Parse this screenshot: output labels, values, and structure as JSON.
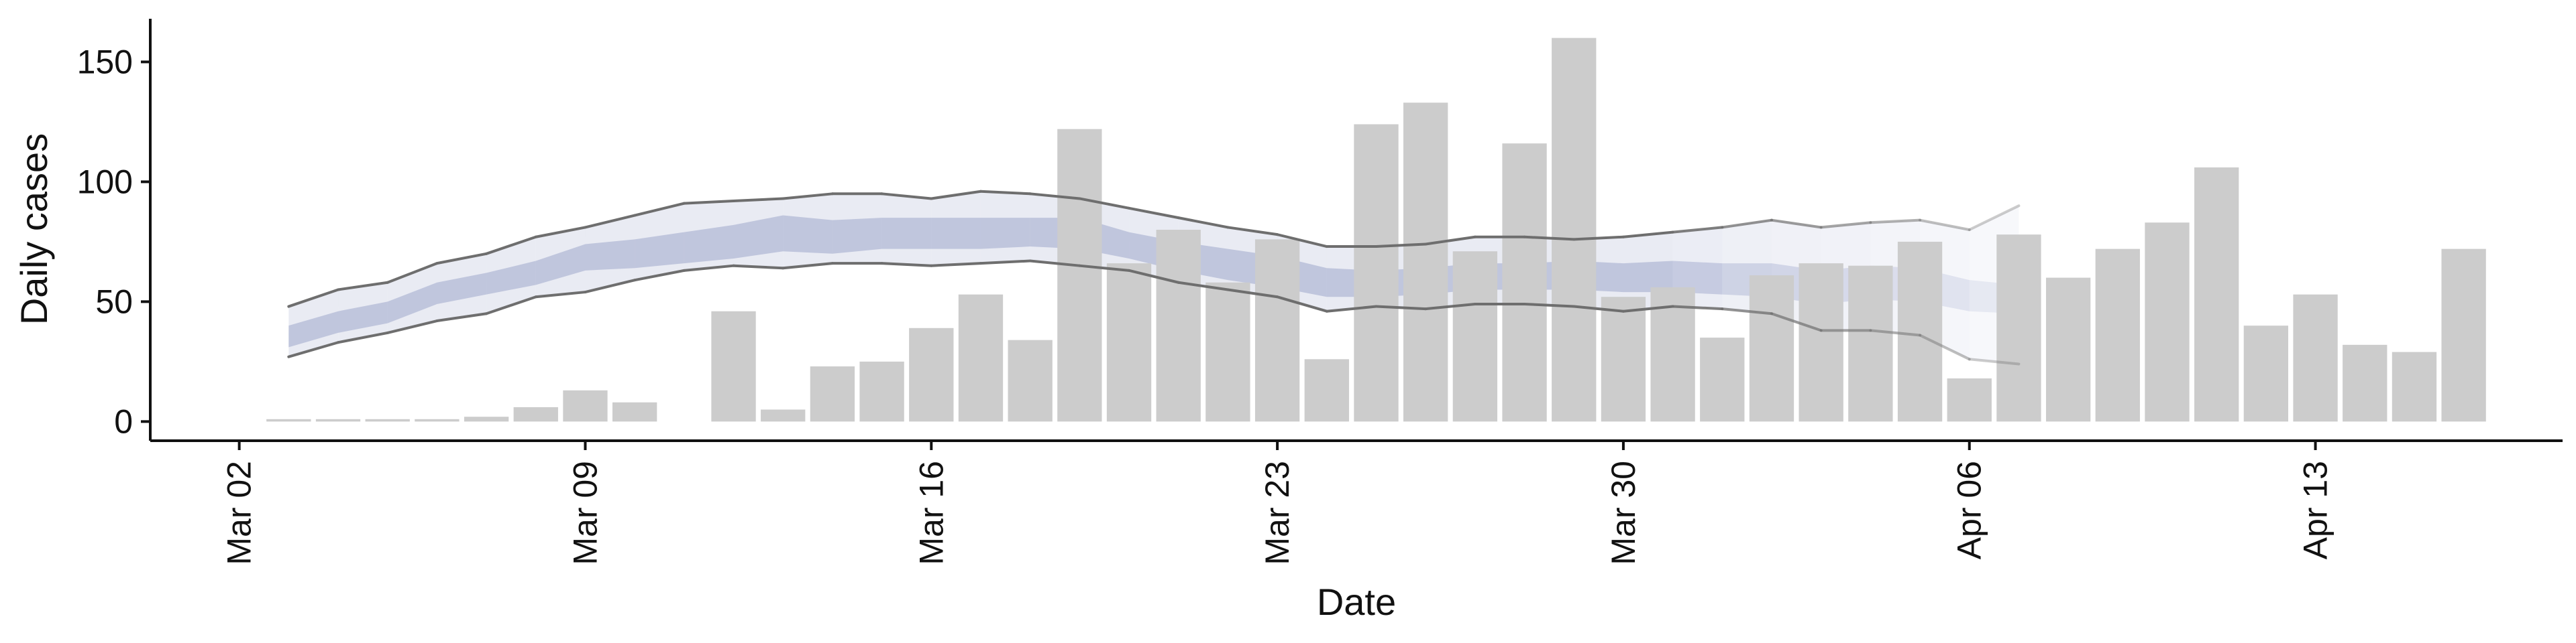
{
  "chart_data": {
    "type": "bar",
    "title": "",
    "xlabel": "Date",
    "ylabel": "Daily cases",
    "ylim": [
      -8,
      168
    ],
    "xlim": [
      "2020-03-02",
      "2020-04-18"
    ],
    "yticks": [
      0,
      50,
      100,
      150
    ],
    "xticks": [
      "2020-03-02",
      "2020-03-09",
      "2020-03-16",
      "2020-03-23",
      "2020-03-30",
      "2020-04-06",
      "2020-04-13"
    ],
    "xtick_labels": [
      "Mar 02",
      "Mar 09",
      "Mar 16",
      "Mar 23",
      "Mar 30",
      "Apr 06",
      "Apr 13"
    ],
    "grid": false,
    "colors": {
      "bars": "#cccccc",
      "band_outer": "#8f99c4",
      "band_inner": "#8f99c4",
      "bound_lines": "#6e6e6e",
      "axis": "#111111"
    },
    "bars": {
      "name": "Daily cases",
      "x": [
        "2020-03-03",
        "2020-03-04",
        "2020-03-05",
        "2020-03-06",
        "2020-03-07",
        "2020-03-08",
        "2020-03-09",
        "2020-03-10",
        "2020-03-12",
        "2020-03-13",
        "2020-03-14",
        "2020-03-15",
        "2020-03-16",
        "2020-03-17",
        "2020-03-18",
        "2020-03-19",
        "2020-03-20",
        "2020-03-21",
        "2020-03-22",
        "2020-03-23",
        "2020-03-24",
        "2020-03-25",
        "2020-03-26",
        "2020-03-27",
        "2020-03-28",
        "2020-03-29",
        "2020-03-30",
        "2020-03-31",
        "2020-04-01",
        "2020-04-02",
        "2020-04-03",
        "2020-04-04",
        "2020-04-05",
        "2020-04-06",
        "2020-04-07",
        "2020-04-08",
        "2020-04-09",
        "2020-04-10",
        "2020-04-11",
        "2020-04-12",
        "2020-04-13",
        "2020-04-14",
        "2020-04-15",
        "2020-04-16",
        "2020-04-17"
      ],
      "values": [
        1,
        1,
        1,
        1,
        2,
        6,
        13,
        8,
        46,
        5,
        23,
        25,
        39,
        53,
        34,
        122,
        66,
        80,
        58,
        76,
        26,
        124,
        133,
        71,
        116,
        160,
        52,
        56,
        35,
        61,
        66,
        65,
        75,
        18,
        78,
        60,
        72,
        83,
        106,
        40,
        53,
        32,
        29,
        72,
        0
      ]
    },
    "band": {
      "name": "",
      "x": [
        "2020-03-03",
        "2020-03-04",
        "2020-03-05",
        "2020-03-06",
        "2020-03-07",
        "2020-03-08",
        "2020-03-09",
        "2020-03-10",
        "2020-03-11",
        "2020-03-12",
        "2020-03-13",
        "2020-03-14",
        "2020-03-15",
        "2020-03-16",
        "2020-03-17",
        "2020-03-18",
        "2020-03-19",
        "2020-03-20",
        "2020-03-21",
        "2020-03-22",
        "2020-03-23",
        "2020-03-24",
        "2020-03-25",
        "2020-03-26",
        "2020-03-27",
        "2020-03-28",
        "2020-03-29",
        "2020-03-30",
        "2020-03-31",
        "2020-04-01",
        "2020-04-02",
        "2020-04-03",
        "2020-04-04",
        "2020-04-05",
        "2020-04-06",
        "2020-04-07"
      ],
      "outer_upper": [
        48,
        55,
        58,
        66,
        70,
        77,
        81,
        86,
        91,
        92,
        93,
        95,
        95,
        93,
        96,
        95,
        93,
        89,
        85,
        81,
        78,
        73,
        73,
        74,
        77,
        77,
        76,
        77,
        79,
        81,
        84,
        81,
        83,
        84,
        80,
        90
      ],
      "outer_lower": [
        27,
        33,
        37,
        42,
        45,
        52,
        54,
        59,
        63,
        65,
        64,
        66,
        66,
        65,
        66,
        67,
        65,
        63,
        58,
        55,
        52,
        46,
        48,
        47,
        49,
        49,
        48,
        46,
        48,
        47,
        45,
        38,
        38,
        36,
        26,
        24
      ],
      "inner_upper": [
        40,
        46,
        50,
        58,
        62,
        67,
        74,
        76,
        79,
        82,
        86,
        84,
        85,
        85,
        85,
        85,
        85,
        79,
        75,
        72,
        69,
        64,
        63,
        64,
        66,
        66,
        67,
        66,
        67,
        66,
        66,
        63,
        65,
        64,
        59,
        57
      ],
      "inner_lower": [
        31,
        37,
        41,
        49,
        53,
        57,
        63,
        64,
        66,
        68,
        71,
        70,
        72,
        72,
        72,
        73,
        72,
        68,
        63,
        59,
        56,
        52,
        52,
        53,
        55,
        55,
        55,
        54,
        54,
        53,
        52,
        49,
        51,
        50,
        46,
        45
      ],
      "opacity": [
        1,
        1,
        1,
        1,
        1,
        1,
        1,
        1,
        1,
        1,
        1,
        1,
        1,
        1,
        1,
        1,
        1,
        1,
        1,
        1,
        1,
        1,
        1,
        1,
        1,
        1,
        1,
        1,
        1,
        0.78,
        0.72,
        0.66,
        0.58,
        0.5,
        0.4,
        0.3
      ]
    }
  }
}
